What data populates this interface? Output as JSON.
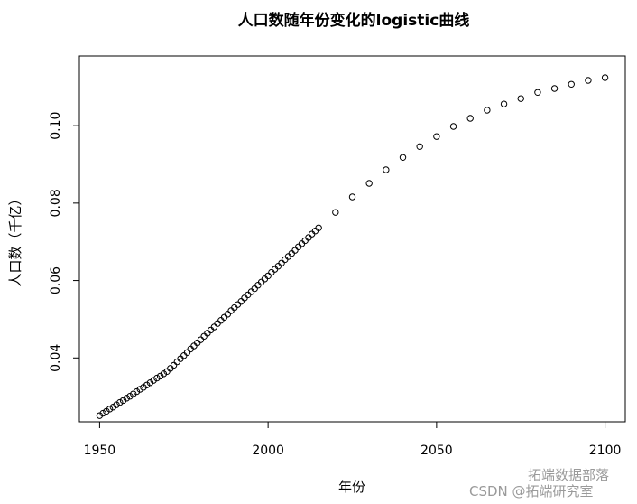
{
  "chart_data": {
    "type": "scatter",
    "title": "人口数随年份变化的logistic曲线",
    "xlabel": "年份",
    "ylabel": "人口数（千亿）",
    "xlim": [
      1944,
      2106
    ],
    "ylim": [
      0.0235,
      0.118
    ],
    "xticks": [
      "1950",
      "2000",
      "2050",
      "2100"
    ],
    "yticks": [
      "0.04",
      "0.06",
      "0.08",
      "0.10"
    ],
    "grid": false,
    "marker": "open-circle",
    "x": [
      1950,
      1951,
      1952,
      1953,
      1954,
      1955,
      1956,
      1957,
      1958,
      1959,
      1960,
      1961,
      1962,
      1963,
      1964,
      1965,
      1966,
      1967,
      1968,
      1969,
      1970,
      1971,
      1972,
      1973,
      1974,
      1975,
      1976,
      1977,
      1978,
      1979,
      1980,
      1981,
      1982,
      1983,
      1984,
      1985,
      1986,
      1987,
      1988,
      1989,
      1990,
      1991,
      1992,
      1993,
      1994,
      1995,
      1996,
      1997,
      1998,
      1999,
      2000,
      2001,
      2002,
      2003,
      2004,
      2005,
      2006,
      2007,
      2008,
      2009,
      2010,
      2011,
      2012,
      2013,
      2014,
      2015,
      2020,
      2025,
      2030,
      2035,
      2040,
      2045,
      2050,
      2055,
      2060,
      2065,
      2070,
      2075,
      2080,
      2085,
      2090,
      2095,
      2100
    ],
    "y": [
      0.0251,
      0.0257,
      0.0262,
      0.0268,
      0.0273,
      0.0279,
      0.0285,
      0.029,
      0.0296,
      0.0301,
      0.0307,
      0.0313,
      0.0319,
      0.0324,
      0.033,
      0.0336,
      0.0342,
      0.0348,
      0.0353,
      0.0359,
      0.0365,
      0.0373,
      0.0381,
      0.039,
      0.0398,
      0.0406,
      0.0414,
      0.0423,
      0.0431,
      0.0439,
      0.0447,
      0.0456,
      0.0464,
      0.0472,
      0.048,
      0.0489,
      0.0497,
      0.0505,
      0.0513,
      0.0522,
      0.053,
      0.0538,
      0.0546,
      0.0555,
      0.0563,
      0.0571,
      0.0579,
      0.0588,
      0.0596,
      0.0604,
      0.0612,
      0.0621,
      0.0629,
      0.0637,
      0.0645,
      0.0654,
      0.0662,
      0.067,
      0.0678,
      0.0687,
      0.0695,
      0.0703,
      0.0711,
      0.072,
      0.0728,
      0.0736,
      0.0776,
      0.0816,
      0.0851,
      0.0886,
      0.0918,
      0.0946,
      0.0972,
      0.0998,
      0.1019,
      0.104,
      0.1056,
      0.107,
      0.1086,
      0.1096,
      0.1107,
      0.1117,
      0.1124
    ]
  },
  "watermark": {
    "line1": "拓端数据部落",
    "line2": "CSDN @拓端研究室"
  }
}
